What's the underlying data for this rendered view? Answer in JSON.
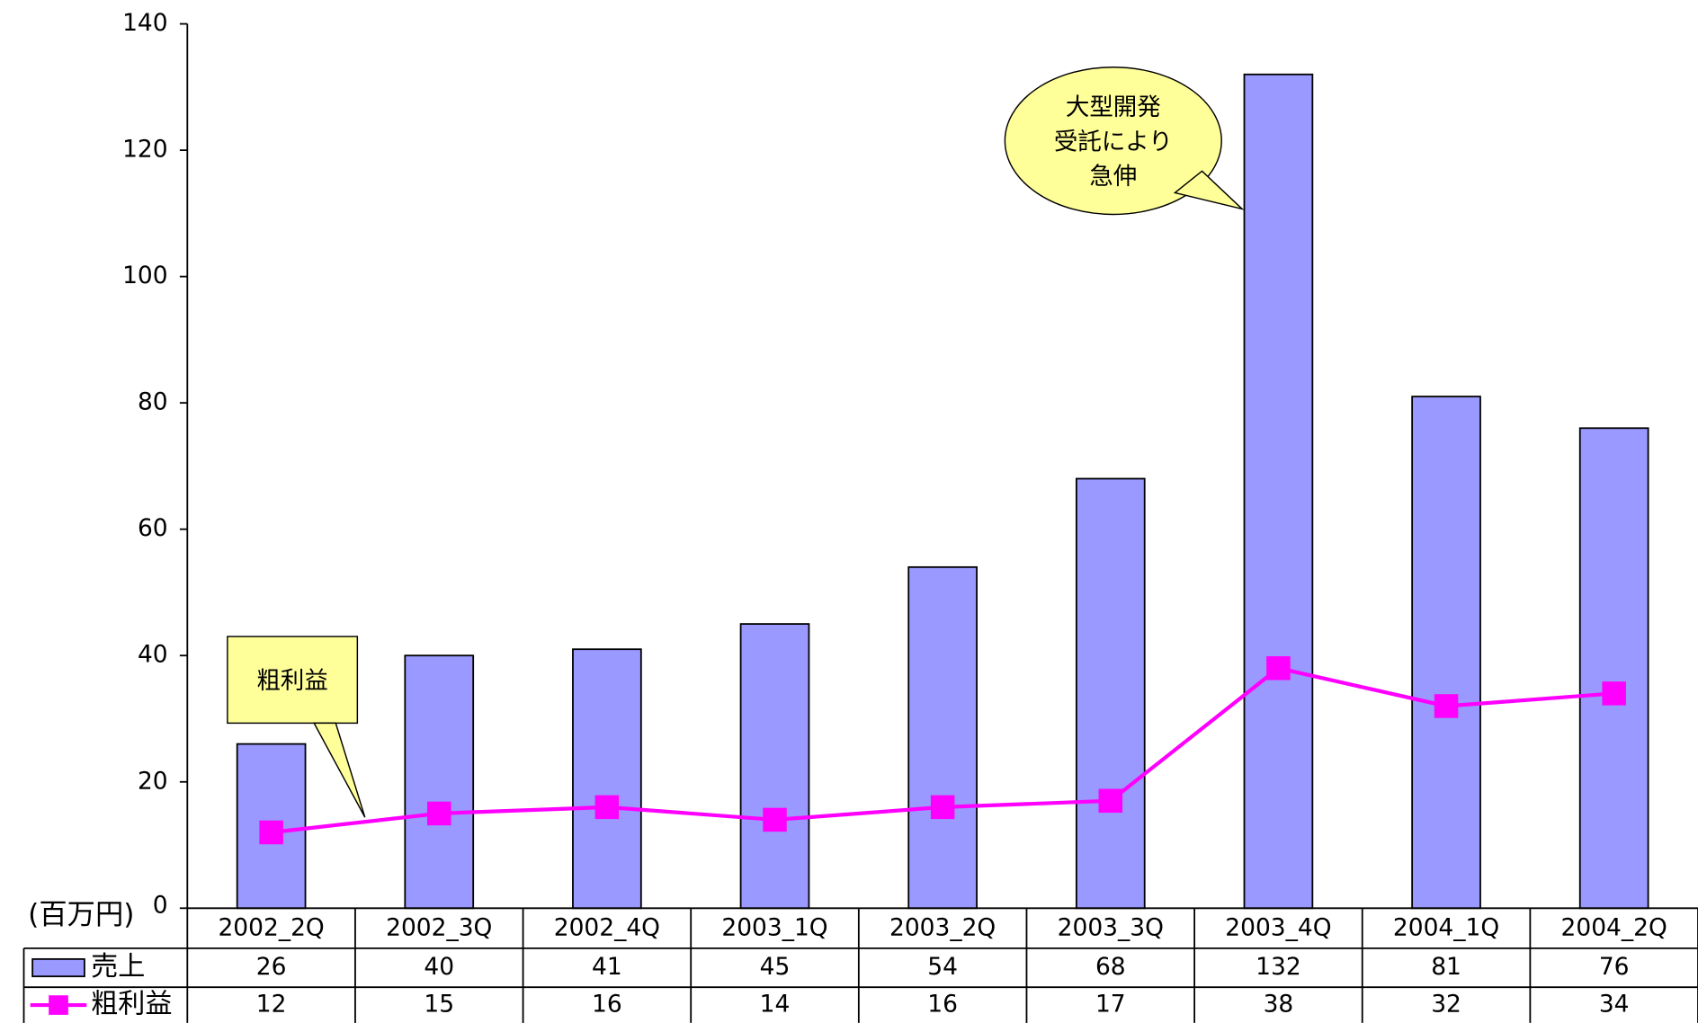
{
  "chart_data": {
    "type": "bar_line_table",
    "y_unit_label": "(百万円)",
    "categories": [
      "2002_2Q",
      "2002_3Q",
      "2002_4Q",
      "2003_1Q",
      "2003_2Q",
      "2003_3Q",
      "2003_4Q",
      "2004_1Q",
      "2004_2Q"
    ],
    "series": [
      {
        "name": "売上",
        "type": "bar",
        "color": "#9999ff",
        "values": [
          26,
          40,
          41,
          45,
          54,
          68,
          132,
          81,
          76
        ]
      },
      {
        "name": "粗利益",
        "type": "line",
        "color": "#ff00ff",
        "values": [
          12,
          15,
          16,
          14,
          16,
          17,
          38,
          32,
          34
        ]
      }
    ],
    "ylim": [
      0,
      140
    ],
    "yticks": [
      0,
      20,
      40,
      60,
      80,
      100,
      120,
      140
    ],
    "annotations": [
      {
        "lines": [
          "大型開発",
          "受託により",
          "急伸"
        ],
        "shape": "ellipse",
        "color": "#ffff99"
      },
      {
        "lines": [
          "粗利益"
        ],
        "shape": "rect",
        "color": "#ffff99"
      }
    ]
  }
}
